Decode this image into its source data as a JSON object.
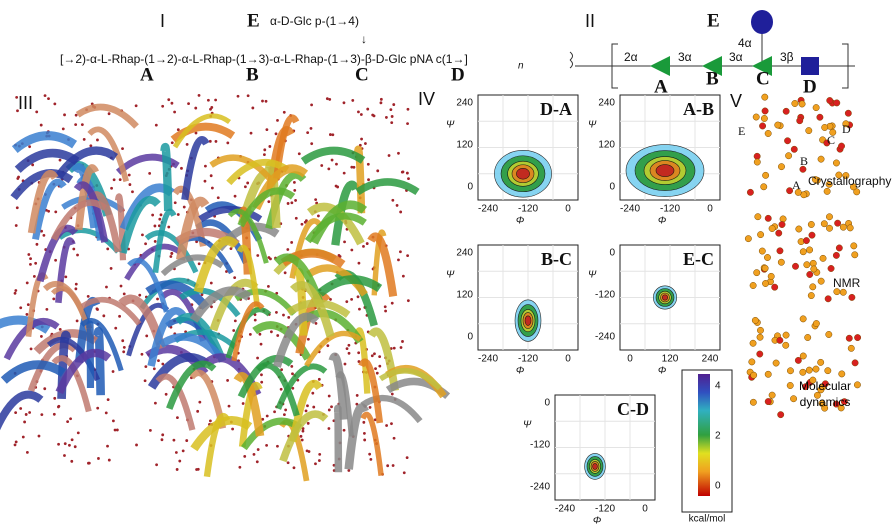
{
  "panel_I": {
    "label": "I",
    "branch_residue": "E",
    "branch": "α-D-Glc p-(1→4)",
    "arrow": "↓",
    "sequence": "[→2)-α-L-Rhap-(1→2)-α-L-Rhap-(1→3)-α-L-Rhap-(1→3)-β-D-Glc pNA c(1→]",
    "subscript": "n",
    "residues": [
      "A",
      "B",
      "C",
      "D"
    ]
  },
  "panel_II": {
    "label": "II",
    "residue_E": "E",
    "linkages": [
      "2α",
      "3α",
      "3α",
      "3β",
      "4α"
    ],
    "residues": [
      "A",
      "B",
      "C",
      "D"
    ]
  },
  "panel_III": {
    "label": "III"
  },
  "panel_IV": {
    "label": "IV",
    "plots": [
      {
        "title": "D-A",
        "xlabel": "Φ",
        "ylabel": "Ψ",
        "xticks": [
          -240,
          -120,
          0
        ],
        "yticks": [
          240,
          120,
          0
        ]
      },
      {
        "title": "A-B",
        "xlabel": "Φ",
        "ylabel": "Ψ",
        "xticks": [
          -240,
          -120,
          0
        ],
        "yticks": [
          240,
          120,
          0
        ]
      },
      {
        "title": "B-C",
        "xlabel": "Φ",
        "ylabel": "Ψ",
        "xticks": [
          -240,
          -120,
          0
        ],
        "yticks": [
          240,
          120,
          0
        ]
      },
      {
        "title": "E-C",
        "xlabel": "Φ",
        "ylabel": "Ψ",
        "xticks": [
          0,
          120,
          240
        ],
        "yticks": [
          0,
          -120,
          -240
        ]
      },
      {
        "title": "C-D",
        "xlabel": "Φ",
        "ylabel": "Ψ",
        "xticks": [
          -240,
          -120,
          0
        ],
        "yticks": [
          0,
          -120,
          -240
        ]
      }
    ],
    "colorbar": {
      "ticks": [
        4,
        2,
        0
      ],
      "label": "kcal/mol"
    }
  },
  "panel_V": {
    "label": "V",
    "residues": [
      "E",
      "D",
      "C",
      "B",
      "A"
    ],
    "methods": [
      "Crystallography",
      "NMR",
      "Molecular dynamics"
    ]
  }
}
